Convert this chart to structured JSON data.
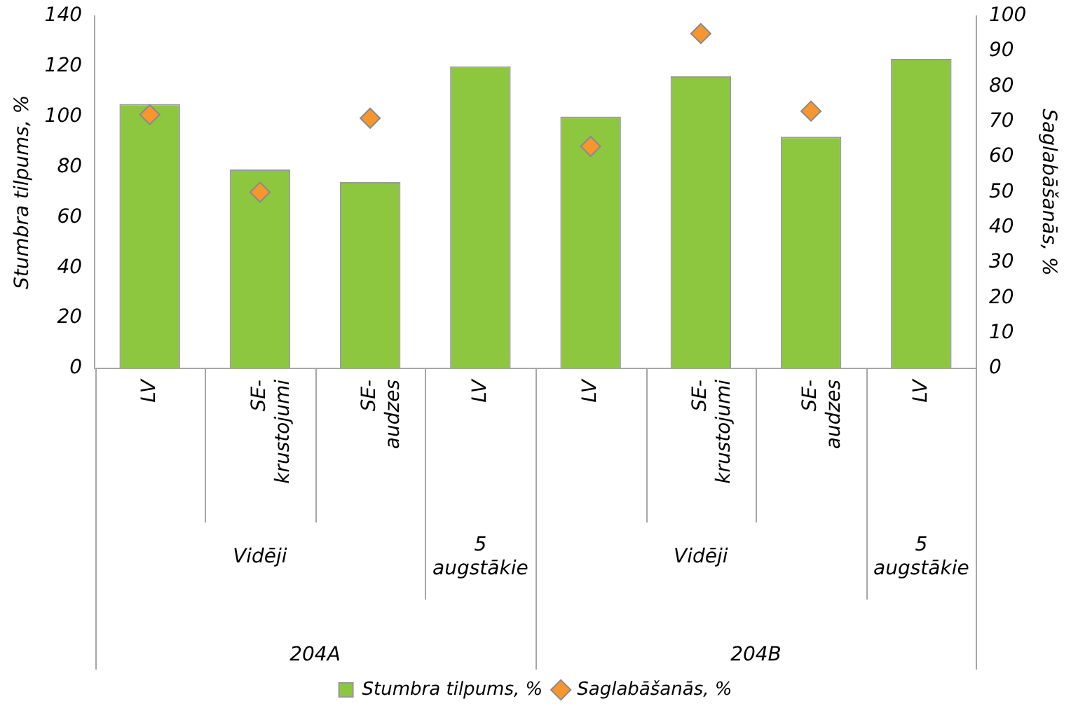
{
  "chart_data": {
    "type": "bar",
    "categories": [
      "LV",
      "SE-krustojumi",
      "SE-audzes",
      "LV",
      "LV",
      "SE-krustojumi",
      "SE-audzes",
      "LV"
    ],
    "series": [
      {
        "name": "Stumbra tilpums, %",
        "color": "#8dc63f",
        "values": [
          105,
          79,
          74,
          120,
          100,
          116,
          92,
          123
        ]
      },
      {
        "name": "Saglabāšanās, %",
        "type": "scatter",
        "axis": "y2",
        "color": "#f7962f",
        "values": [
          72,
          50,
          71,
          null,
          63,
          95,
          73,
          null
        ]
      }
    ],
    "ylabel": "Stumbra tilpums, %",
    "y2label": "Saglabāšanās, %",
    "ylim": [
      0,
      140
    ],
    "yticks": [
      0,
      20,
      40,
      60,
      80,
      100,
      120,
      140
    ],
    "y2lim": [
      0,
      100
    ],
    "y2ticks": [
      0,
      10,
      20,
      30,
      40,
      50,
      60,
      70,
      80,
      90,
      100
    ],
    "annotations": [
      "Vidēji",
      "5 augstākie",
      "Vidēji",
      "5 augstākie",
      "204A",
      "204B"
    ],
    "marker": "diamond",
    "grid": false,
    "legend": "bottom"
  }
}
